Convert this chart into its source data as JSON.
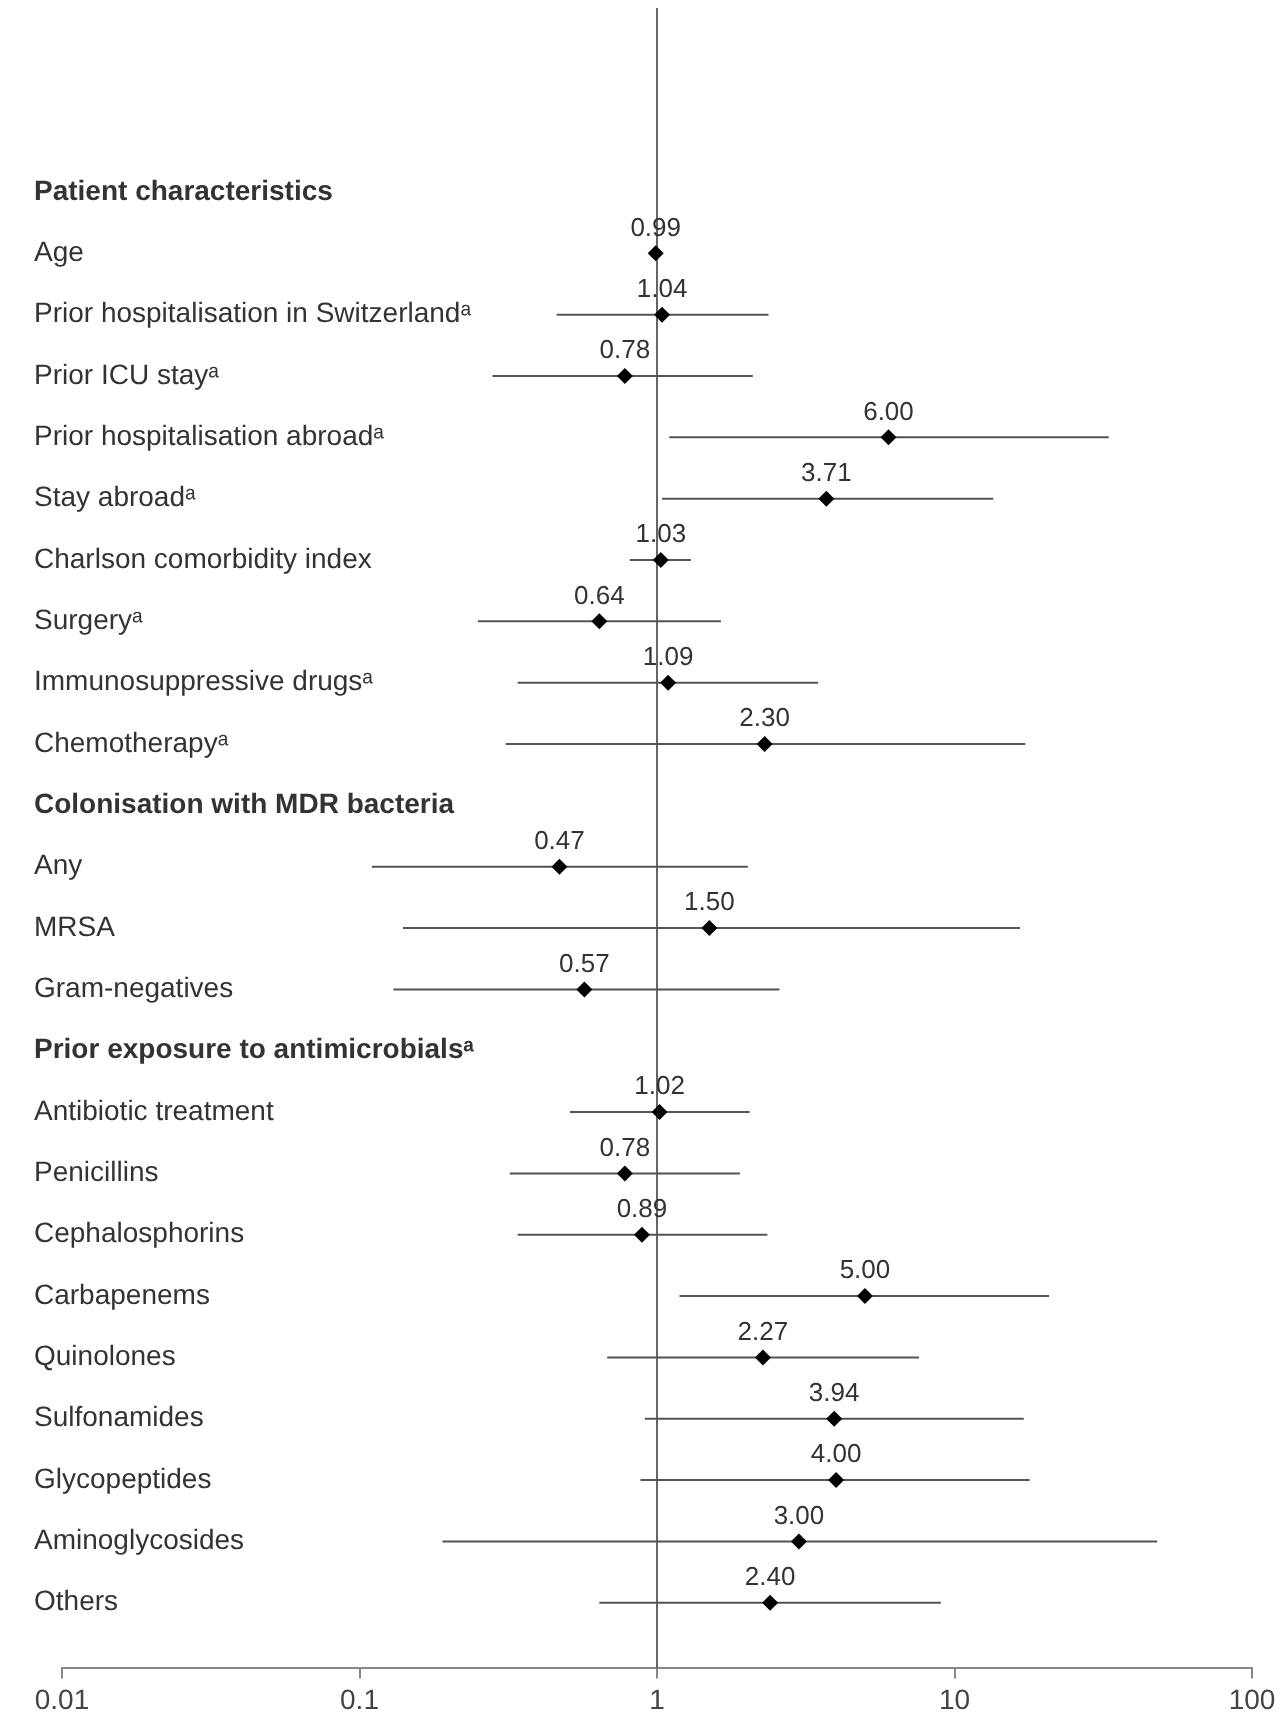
{
  "chart_data": {
    "type": "scatter",
    "orientation": "horizontal",
    "log": "x",
    "grid": false,
    "marker": "diamond",
    "color": "#000000",
    "categories": [
      "Patient characteristics",
      "Age",
      "Prior hospitalisation in Switzerlandᵃ",
      "Prior ICU stayᵃ",
      "Prior hospitalisation abroadᵃ",
      "Stay abroadᵃ",
      "Charlson comorbidity index",
      "Surgeryᵃ",
      "Immunosuppressive drugsᵃ",
      "Chemotherapyᵃ",
      "Colonisation with MDR bacteria",
      "Any",
      "MRSA",
      "Gram-negatives",
      "Prior exposure to antimicrobialsᵃ",
      "Antibiotic treatment",
      "Penicillins",
      "Cephalosphorins",
      "Carbapenems",
      "Quinolones",
      "Sulfonamides",
      "Glycopeptides",
      "Aminoglycosides",
      "Others"
    ],
    "values": [
      null,
      0.99,
      1.04,
      0.78,
      6.0,
      3.71,
      1.03,
      0.64,
      1.09,
      2.3,
      null,
      0.47,
      1.5,
      0.57,
      null,
      1.02,
      0.78,
      0.89,
      5.0,
      2.27,
      3.94,
      4.0,
      3.0,
      2.4
    ],
    "value_labels": [
      null,
      "0.99",
      "1.04",
      "0.78",
      "6.00",
      "3.71",
      "1.03",
      "0.64",
      "1.09",
      "2.30",
      null,
      "0.47",
      "1.50",
      "0.57",
      null,
      "1.02",
      "0.78",
      "0.89",
      "5.00",
      "2.27",
      "3.94",
      "4.00",
      "3.00",
      "2.40"
    ],
    "errors": [
      null,
      null,
      [
        0.46,
        2.37
      ],
      [
        0.28,
        2.1
      ],
      [
        1.1,
        33
      ],
      [
        1.04,
        13.5
      ],
      [
        0.81,
        1.3
      ],
      [
        0.25,
        1.64
      ],
      [
        0.34,
        3.48
      ],
      [
        0.31,
        17.3
      ],
      null,
      [
        0.11,
        2.02
      ],
      [
        0.14,
        16.6
      ],
      [
        0.13,
        2.58
      ],
      null,
      [
        0.51,
        2.05
      ],
      [
        0.32,
        1.9
      ],
      [
        0.34,
        2.35
      ],
      [
        1.19,
        20.8
      ],
      [
        0.68,
        7.6
      ],
      [
        0.91,
        17.1
      ],
      [
        0.88,
        17.9
      ],
      [
        0.19,
        48
      ],
      [
        0.64,
        9.0
      ]
    ],
    "xlim": [
      0.01,
      100
    ],
    "xticks": [
      0.01,
      0.1,
      1,
      10,
      100
    ],
    "ref_lines": [
      {
        "axis": "x",
        "value": 1,
        "color": "#666666"
      }
    ]
  }
}
